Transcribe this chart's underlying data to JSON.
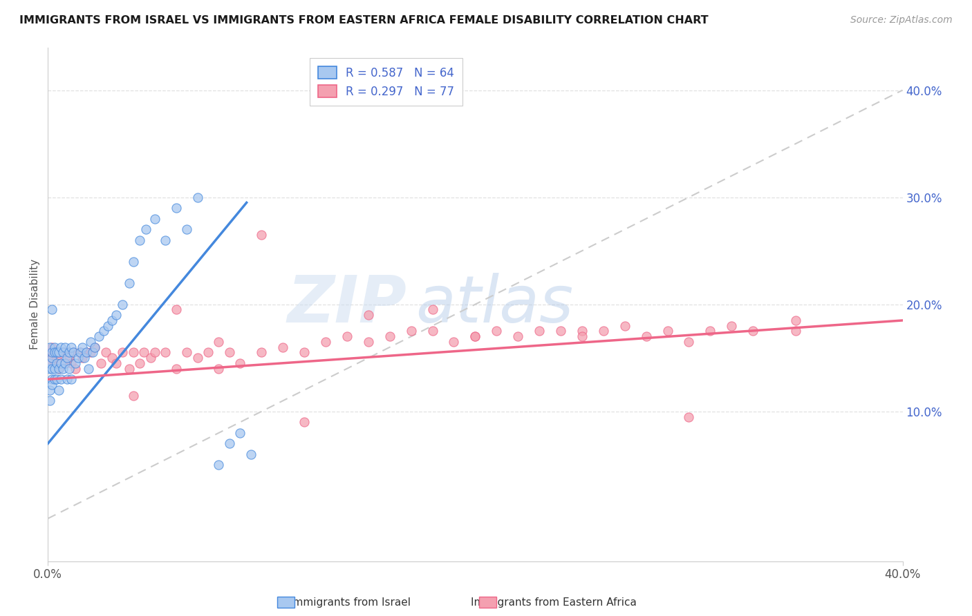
{
  "title": "IMMIGRANTS FROM ISRAEL VS IMMIGRANTS FROM EASTERN AFRICA FEMALE DISABILITY CORRELATION CHART",
  "source": "Source: ZipAtlas.com",
  "ylabel": "Female Disability",
  "right_yticks": [
    "10.0%",
    "20.0%",
    "30.0%",
    "40.0%"
  ],
  "right_ytick_vals": [
    0.1,
    0.2,
    0.3,
    0.4
  ],
  "xmin": 0.0,
  "xmax": 0.4,
  "ymin": -0.04,
  "ymax": 0.44,
  "legend_r1": "R = 0.587",
  "legend_n1": "N = 64",
  "legend_r2": "R = 0.297",
  "legend_n2": "N = 77",
  "color_israel": "#a8c8f0",
  "color_africa": "#f4a0b0",
  "color_israel_line": "#4488dd",
  "color_africa_line": "#ee6688",
  "color_diagonal": "#cccccc",
  "color_r_text": "#4466cc",
  "watermark_zip": "ZIP",
  "watermark_atlas": "atlas",
  "grid_color": "#e0e0e0",
  "israel_x": [
    0.001,
    0.001,
    0.001,
    0.001,
    0.001,
    0.002,
    0.002,
    0.002,
    0.002,
    0.002,
    0.003,
    0.003,
    0.003,
    0.003,
    0.004,
    0.004,
    0.004,
    0.005,
    0.005,
    0.005,
    0.006,
    0.006,
    0.006,
    0.007,
    0.007,
    0.008,
    0.008,
    0.009,
    0.009,
    0.01,
    0.01,
    0.011,
    0.011,
    0.012,
    0.013,
    0.014,
    0.015,
    0.016,
    0.017,
    0.018,
    0.019,
    0.02,
    0.021,
    0.022,
    0.024,
    0.026,
    0.028,
    0.03,
    0.032,
    0.035,
    0.038,
    0.04,
    0.043,
    0.046,
    0.05,
    0.055,
    0.06,
    0.065,
    0.07,
    0.08,
    0.085,
    0.09,
    0.002,
    0.095
  ],
  "israel_y": [
    0.14,
    0.16,
    0.12,
    0.145,
    0.11,
    0.15,
    0.13,
    0.155,
    0.125,
    0.14,
    0.16,
    0.14,
    0.155,
    0.13,
    0.145,
    0.155,
    0.13,
    0.14,
    0.155,
    0.12,
    0.145,
    0.16,
    0.13,
    0.155,
    0.14,
    0.145,
    0.16,
    0.15,
    0.13,
    0.155,
    0.14,
    0.16,
    0.13,
    0.155,
    0.145,
    0.15,
    0.155,
    0.16,
    0.15,
    0.155,
    0.14,
    0.165,
    0.155,
    0.16,
    0.17,
    0.175,
    0.18,
    0.185,
    0.19,
    0.2,
    0.22,
    0.24,
    0.26,
    0.27,
    0.28,
    0.26,
    0.29,
    0.27,
    0.3,
    0.05,
    0.07,
    0.08,
    0.195,
    0.06
  ],
  "africa_x": [
    0.001,
    0.001,
    0.002,
    0.002,
    0.003,
    0.003,
    0.004,
    0.005,
    0.005,
    0.006,
    0.007,
    0.008,
    0.009,
    0.01,
    0.011,
    0.012,
    0.013,
    0.015,
    0.016,
    0.018,
    0.02,
    0.022,
    0.025,
    0.027,
    0.03,
    0.032,
    0.035,
    0.038,
    0.04,
    0.043,
    0.045,
    0.048,
    0.05,
    0.055,
    0.06,
    0.065,
    0.07,
    0.075,
    0.08,
    0.085,
    0.09,
    0.1,
    0.11,
    0.12,
    0.13,
    0.14,
    0.15,
    0.16,
    0.17,
    0.18,
    0.19,
    0.2,
    0.21,
    0.22,
    0.23,
    0.24,
    0.25,
    0.26,
    0.27,
    0.28,
    0.29,
    0.3,
    0.31,
    0.32,
    0.33,
    0.35,
    0.1,
    0.15,
    0.2,
    0.25,
    0.06,
    0.12,
    0.18,
    0.3,
    0.08,
    0.35,
    0.04
  ],
  "africa_y": [
    0.155,
    0.145,
    0.15,
    0.16,
    0.145,
    0.155,
    0.15,
    0.155,
    0.14,
    0.145,
    0.155,
    0.145,
    0.155,
    0.15,
    0.145,
    0.155,
    0.14,
    0.155,
    0.15,
    0.155,
    0.155,
    0.16,
    0.145,
    0.155,
    0.15,
    0.145,
    0.155,
    0.14,
    0.155,
    0.145,
    0.155,
    0.15,
    0.155,
    0.155,
    0.14,
    0.155,
    0.15,
    0.155,
    0.14,
    0.155,
    0.145,
    0.155,
    0.16,
    0.155,
    0.165,
    0.17,
    0.165,
    0.17,
    0.175,
    0.175,
    0.165,
    0.17,
    0.175,
    0.17,
    0.175,
    0.175,
    0.175,
    0.175,
    0.18,
    0.17,
    0.175,
    0.165,
    0.175,
    0.18,
    0.175,
    0.175,
    0.265,
    0.19,
    0.17,
    0.17,
    0.195,
    0.09,
    0.195,
    0.095,
    0.165,
    0.185,
    0.115
  ]
}
